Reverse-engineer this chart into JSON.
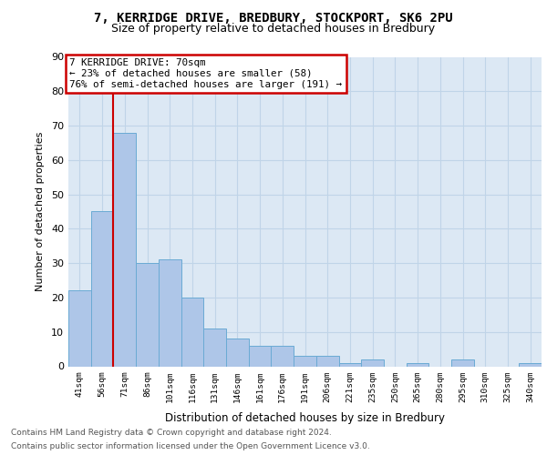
{
  "title1": "7, KERRIDGE DRIVE, BREDBURY, STOCKPORT, SK6 2PU",
  "title2": "Size of property relative to detached houses in Bredbury",
  "xlabel": "Distribution of detached houses by size in Bredbury",
  "ylabel": "Number of detached properties",
  "footnote1": "Contains HM Land Registry data © Crown copyright and database right 2024.",
  "footnote2": "Contains public sector information licensed under the Open Government Licence v3.0.",
  "categories": [
    "41sqm",
    "56sqm",
    "71sqm",
    "86sqm",
    "101sqm",
    "116sqm",
    "131sqm",
    "146sqm",
    "161sqm",
    "176sqm",
    "191sqm",
    "206sqm",
    "221sqm",
    "235sqm",
    "250sqm",
    "265sqm",
    "280sqm",
    "295sqm",
    "310sqm",
    "325sqm",
    "340sqm"
  ],
  "values": [
    22,
    45,
    68,
    30,
    31,
    20,
    11,
    8,
    6,
    6,
    3,
    3,
    1,
    2,
    0,
    1,
    0,
    2,
    0,
    0,
    1
  ],
  "bar_color": "#aec6e8",
  "bar_edge_color": "#6aaad4",
  "grid_color": "#c0d4e8",
  "background_color": "#dce8f4",
  "annotation_line1": "7 KERRIDGE DRIVE: 70sqm",
  "annotation_line2": "← 23% of detached houses are smaller (58)",
  "annotation_line3": "76% of semi-detached houses are larger (191) →",
  "annotation_box_facecolor": "#ffffff",
  "annotation_box_edgecolor": "#cc0000",
  "vline_color": "#cc0000",
  "vline_x": 1.5,
  "ylim": [
    0,
    90
  ],
  "yticks": [
    0,
    10,
    20,
    30,
    40,
    50,
    60,
    70,
    80,
    90
  ],
  "footnote_color": "#555555"
}
